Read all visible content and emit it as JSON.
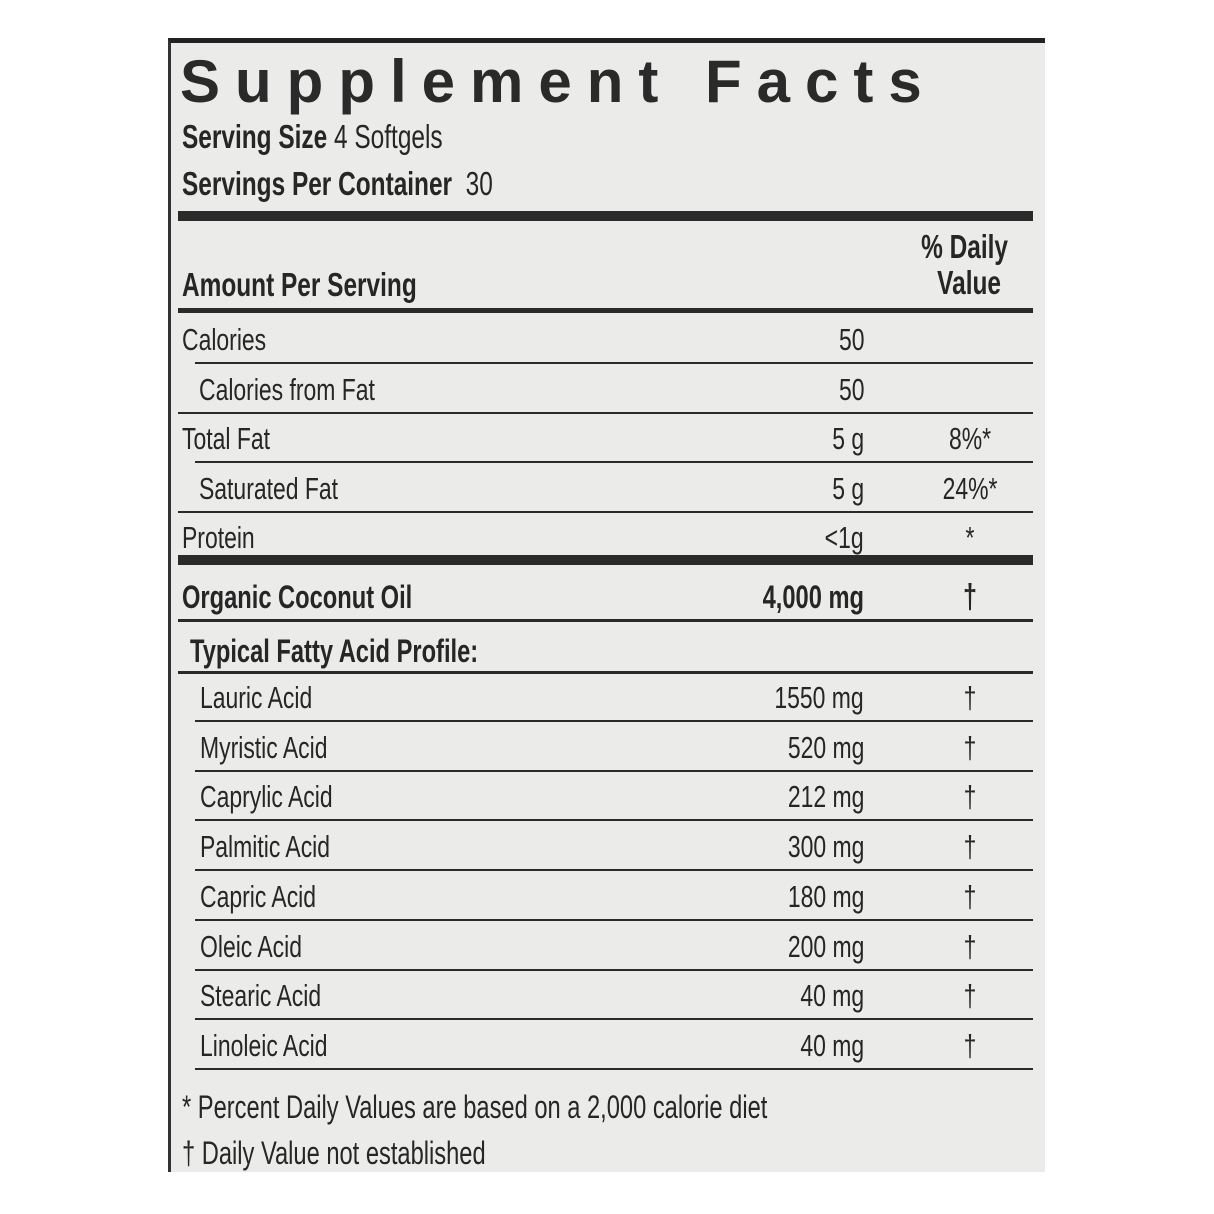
{
  "title": "Supplement Facts",
  "serving_size": {
    "label": "Serving Size",
    "value": "4 Softgels"
  },
  "servings_per_container": {
    "label": "Servings Per Container",
    "value": "30"
  },
  "header": {
    "amount_per_serving": "Amount Per Serving",
    "dv_line1": "% Daily",
    "dv_line2": "Value"
  },
  "nutrients": [
    {
      "name": "Calories",
      "amount": "50",
      "dv": ""
    },
    {
      "name": "Calories from Fat",
      "amount": "50",
      "dv": ""
    },
    {
      "name": "Total Fat",
      "amount": "5 g",
      "dv": "8%*"
    },
    {
      "name": "Saturated Fat",
      "amount": "5 g",
      "dv": "24%*"
    },
    {
      "name": "Protein",
      "amount": "<1g",
      "dv": "*"
    }
  ],
  "main_ingredient": {
    "name": "Organic Coconut Oil",
    "amount": "4,000 mg",
    "dv": "†"
  },
  "profile_heading": "Typical Fatty Acid Profile:",
  "fatty_acids": [
    {
      "name": "Lauric Acid",
      "amount": "1550 mg",
      "dv": "†"
    },
    {
      "name": "Myristic Acid",
      "amount": "520 mg",
      "dv": "†"
    },
    {
      "name": "Caprylic Acid",
      "amount": "212 mg",
      "dv": "†"
    },
    {
      "name": "Palmitic Acid",
      "amount": "300 mg",
      "dv": "†"
    },
    {
      "name": "Capric Acid",
      "amount": "180 mg",
      "dv": "†"
    },
    {
      "name": "Oleic Acid",
      "amount": "200 mg",
      "dv": "†"
    },
    {
      "name": "Stearic Acid",
      "amount": "40 mg",
      "dv": "†"
    },
    {
      "name": "Linoleic Acid",
      "amount": "40 mg",
      "dv": "†"
    }
  ],
  "footnotes": [
    "* Percent Daily Values are based on a 2,000 calorie diet",
    "† Daily Value not established"
  ]
}
